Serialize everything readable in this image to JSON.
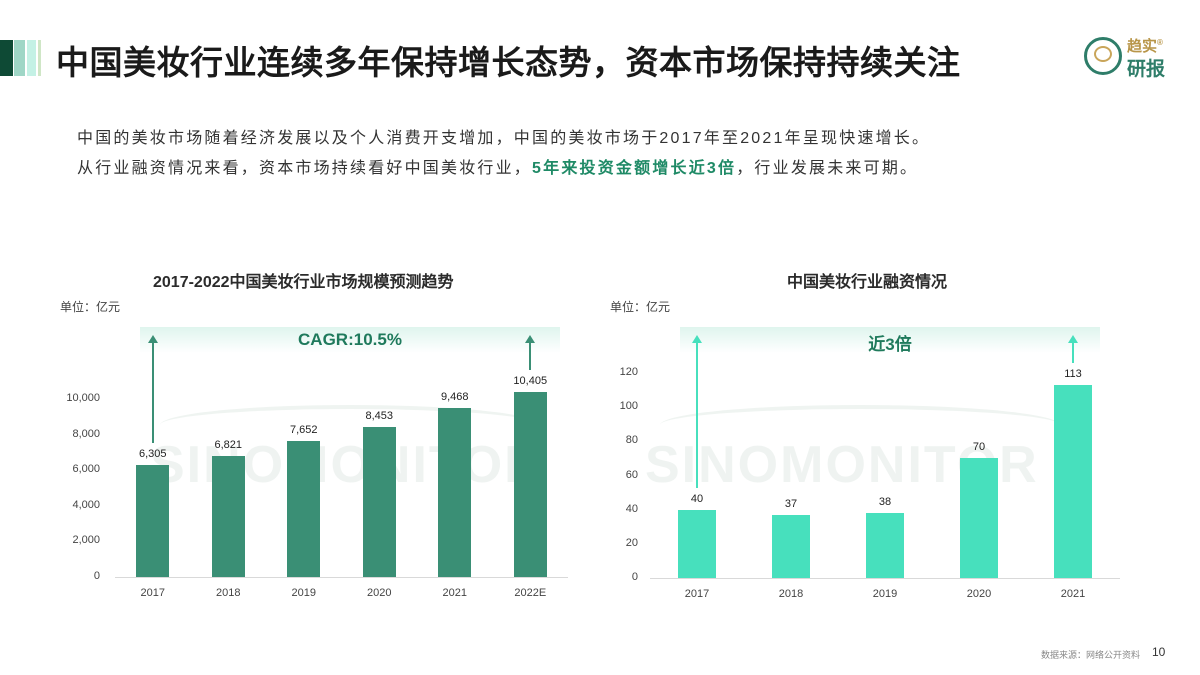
{
  "header": {
    "title": "中国美妆行业连续多年保持增长态势，资本市场保持持续关注",
    "accent_colors": [
      "#0e4a35",
      "#9fd6c6",
      "#c4f1e5",
      "#cfe6c6"
    ],
    "logo": {
      "top_text": "趋实",
      "registered": "®",
      "bottom_text": "研报"
    }
  },
  "intro": {
    "line1": "中国的美妆市场随着经济发展以及个人消费开支增加，中国的美妆市场于2017年至2021年呈现快速增长。",
    "line2_pre": "从行业融资情况来看，资本市场持续看好中国美妆行业，",
    "line2_highlight": "5年来投资金额增长近3倍",
    "line2_post": "，行业发展未来可期。"
  },
  "watermark": "SINOMONITOR",
  "footer": {
    "source": "数据来源：网络公开资料",
    "page_number": "10"
  },
  "chart_data": [
    {
      "type": "bar",
      "title": "2017-2022中国美妆行业市场规模预测趋势",
      "unit": "单位：亿元",
      "annotation": "CAGR:10.5%",
      "categories": [
        "2017",
        "2018",
        "2019",
        "2020",
        "2021",
        "2022E"
      ],
      "values": [
        6305,
        6821,
        7652,
        8453,
        9468,
        10405
      ],
      "value_labels": [
        "6,305",
        "6,821",
        "7,652",
        "8,453",
        "9,468",
        "10,405"
      ],
      "yticks": [
        "0",
        "2,000",
        "4,000",
        "6,000",
        "8,000",
        "10,000"
      ],
      "ylim": [
        0,
        10000
      ],
      "xlabel": "",
      "ylabel": "亿元",
      "bar_color": "#3a8f75",
      "grid": false,
      "legend": "none"
    },
    {
      "type": "bar",
      "title": "中国美妆行业融资情况",
      "unit": "单位：亿元",
      "annotation": "近3倍",
      "categories": [
        "2017",
        "2018",
        "2019",
        "2020",
        "2021"
      ],
      "values": [
        40,
        37,
        38,
        70,
        113
      ],
      "value_labels": [
        "40",
        "37",
        "38",
        "70",
        "113"
      ],
      "yticks": [
        "0",
        "20",
        "40",
        "60",
        "80",
        "100",
        "120"
      ],
      "ylim": [
        0,
        120
      ],
      "xlabel": "",
      "ylabel": "亿元",
      "bar_color": "#47e0bd",
      "grid": false,
      "legend": "none"
    }
  ]
}
